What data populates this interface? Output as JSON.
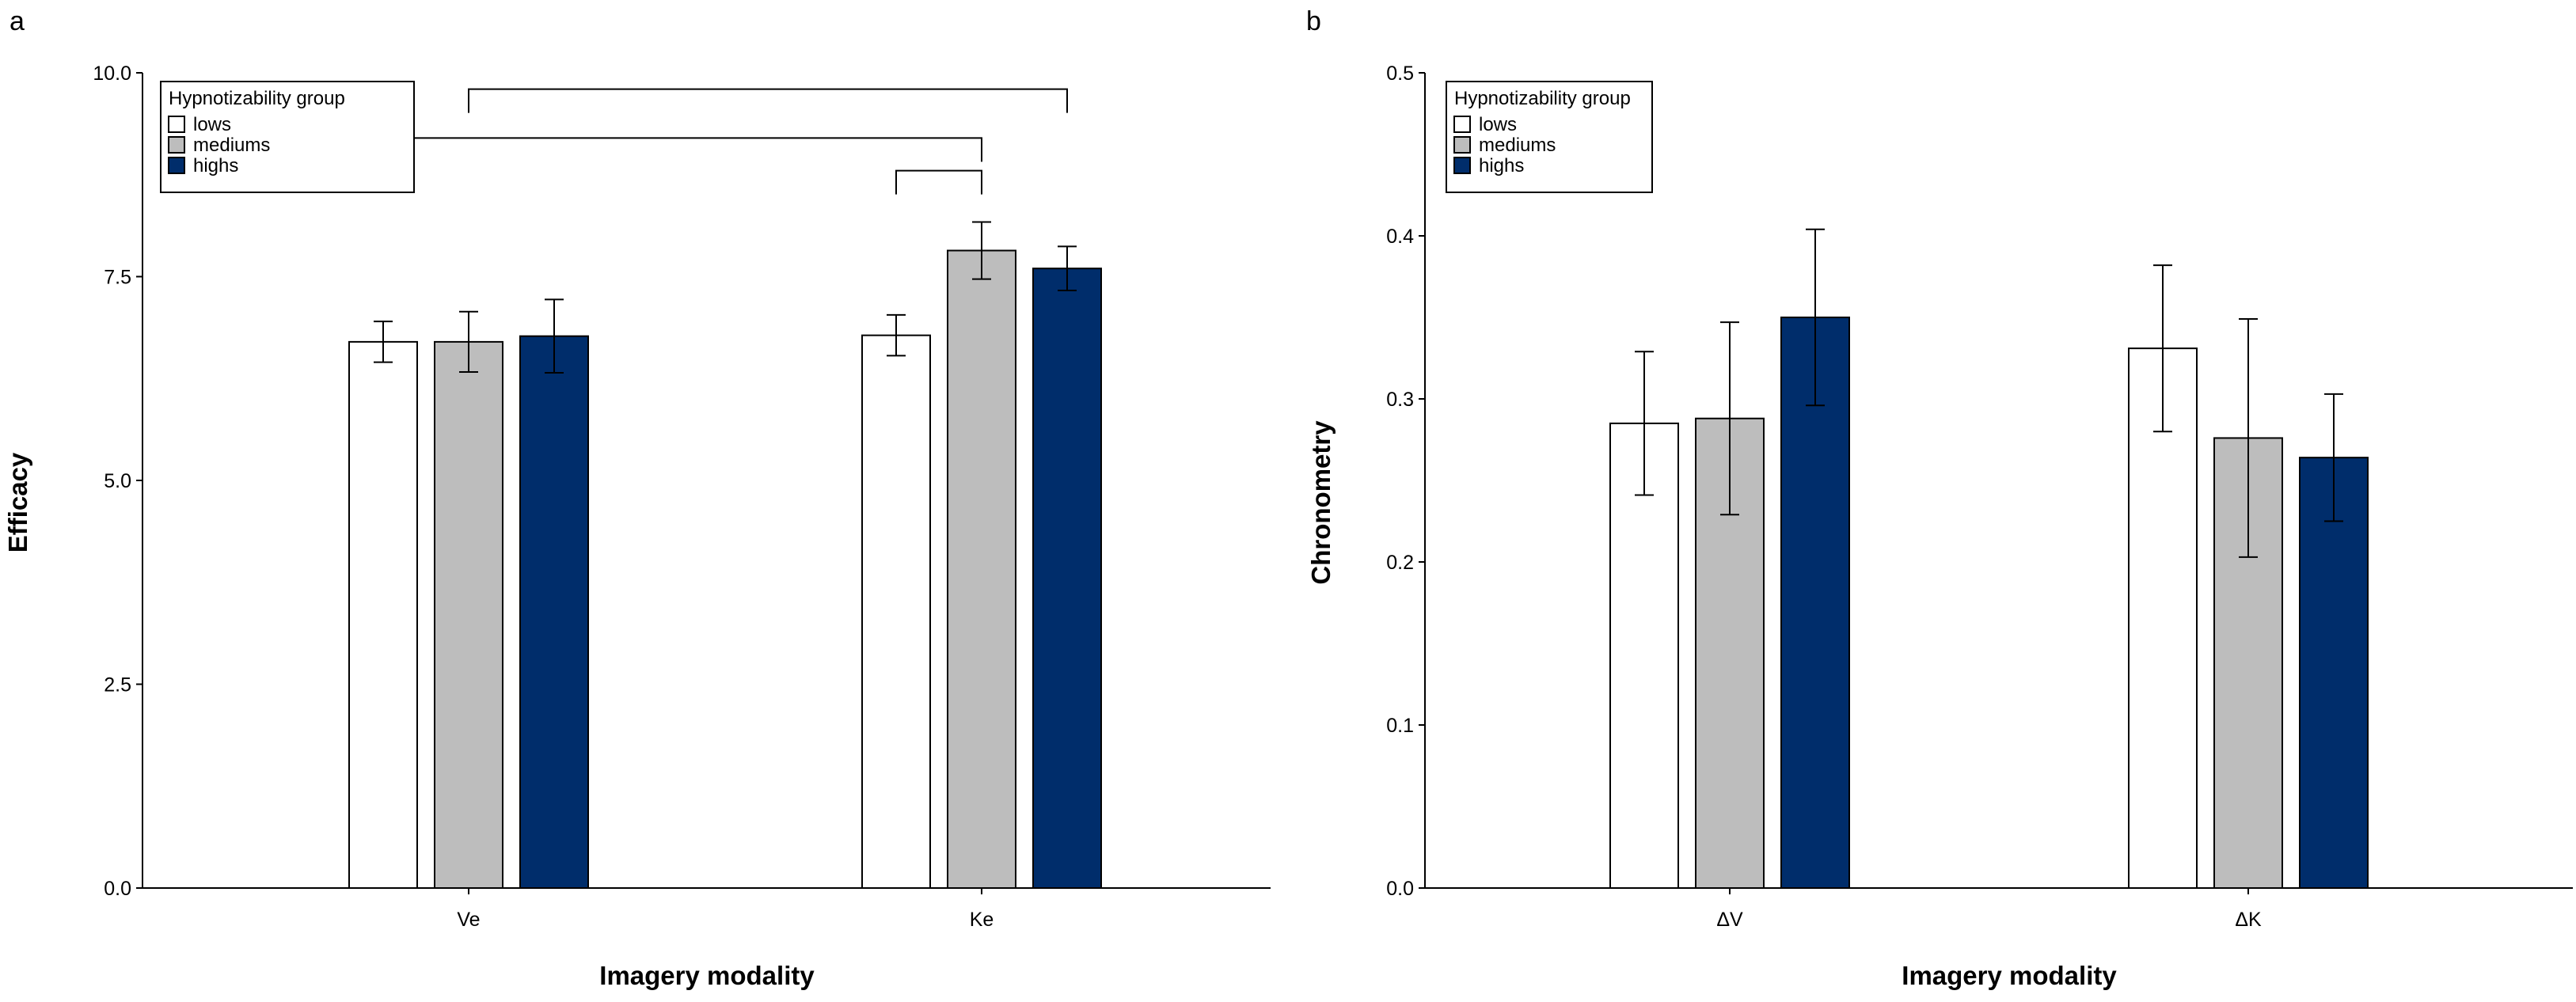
{
  "chart_data": [
    {
      "panel_label": "a",
      "type": "bar",
      "categories": [
        "Ve",
        "Ke"
      ],
      "series": [
        {
          "name": "lows",
          "color": "#ffffff",
          "values": [
            6.7,
            6.78
          ],
          "errors": [
            0.25,
            0.25
          ]
        },
        {
          "name": "mediums",
          "color": "#bdbdbd",
          "values": [
            6.7,
            7.82
          ],
          "errors": [
            0.37,
            0.35
          ]
        },
        {
          "name": "highs",
          "color": "#002d6b",
          "values": [
            6.77,
            7.6
          ],
          "errors": [
            0.45,
            0.27
          ]
        }
      ],
      "xlabel": "Imagery modality",
      "ylabel": "Efficacy",
      "ylim": [
        0,
        10
      ],
      "yticks": [
        "0.0",
        "2.5",
        "5.0",
        "7.5",
        "10.0"
      ],
      "ytick_values": [
        0,
        2.5,
        5,
        7.5,
        10
      ],
      "grid": false,
      "legend": {
        "title": "Hypnotizability group",
        "placement": "top-left"
      },
      "brackets": [
        {
          "from": {
            "category": 0,
            "series": 1
          },
          "to": {
            "category": 1,
            "series": 2
          },
          "level": 9.8
        },
        {
          "from": {
            "category": 0,
            "series": 0
          },
          "to": {
            "category": 1,
            "series": 1
          },
          "level": 9.2
        },
        {
          "from": {
            "category": 1,
            "series": 0
          },
          "to": {
            "category": 1,
            "series": 1
          },
          "level": 8.8
        }
      ]
    },
    {
      "panel_label": "b",
      "type": "bar",
      "categories": [
        "ΔV",
        "ΔK"
      ],
      "series": [
        {
          "name": "lows",
          "color": "#ffffff",
          "values": [
            0.285,
            0.331
          ],
          "errors": [
            0.044,
            0.051
          ]
        },
        {
          "name": "mediums",
          "color": "#bdbdbd",
          "values": [
            0.288,
            0.276
          ],
          "errors": [
            0.059,
            0.073
          ]
        },
        {
          "name": "highs",
          "color": "#002d6b",
          "values": [
            0.35,
            0.264
          ],
          "errors": [
            0.054,
            0.039
          ]
        }
      ],
      "xlabel": "Imagery modality",
      "ylabel": "Chronometry",
      "ylim": [
        0,
        0.5
      ],
      "yticks": [
        "0.0",
        "0.1",
        "0.2",
        "0.3",
        "0.4",
        "0.5"
      ],
      "ytick_values": [
        0,
        0.1,
        0.2,
        0.3,
        0.4,
        0.5
      ],
      "grid": false,
      "legend": {
        "title": "Hypnotizability group",
        "placement": "top-left"
      },
      "brackets": []
    }
  ]
}
